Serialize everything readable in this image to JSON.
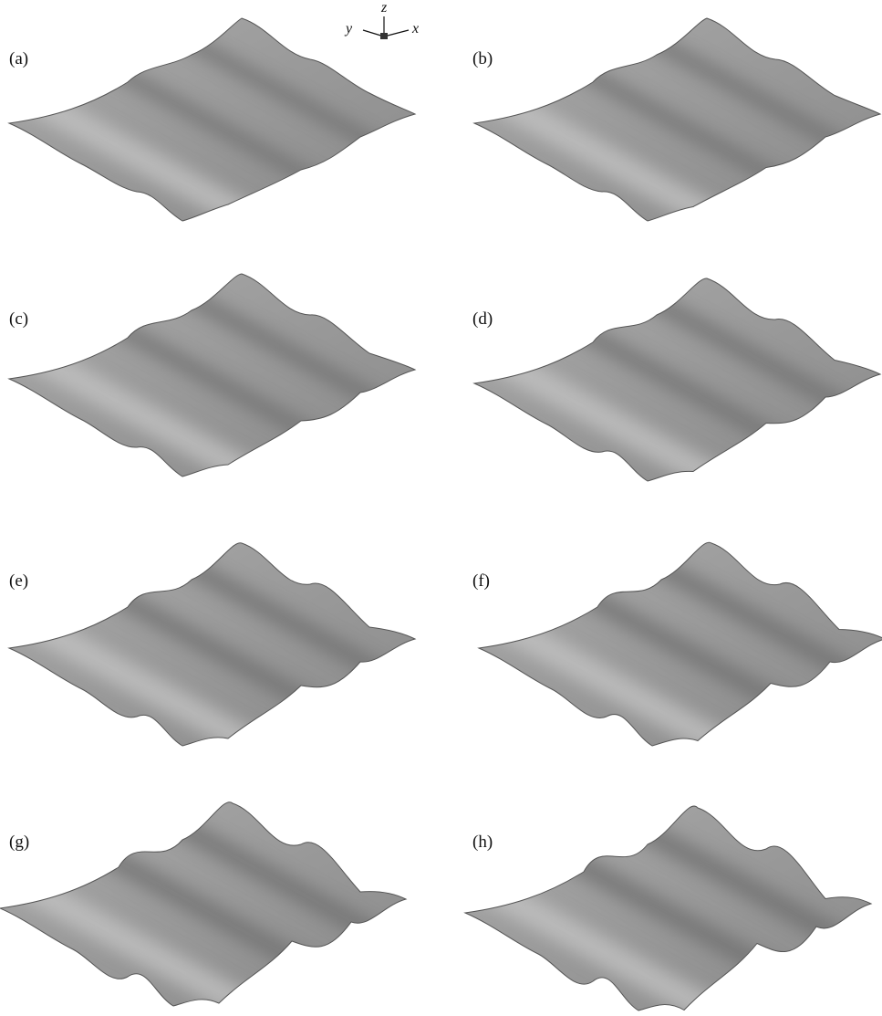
{
  "panels": [
    {
      "label": "(a)"
    },
    {
      "label": "(b)"
    },
    {
      "label": "(c)"
    },
    {
      "label": "(d)"
    },
    {
      "label": "(e)"
    },
    {
      "label": "(f)"
    },
    {
      "label": "(g)"
    },
    {
      "label": "(h)"
    }
  ],
  "axes": {
    "z": "z",
    "y": "y",
    "x": "x"
  }
}
